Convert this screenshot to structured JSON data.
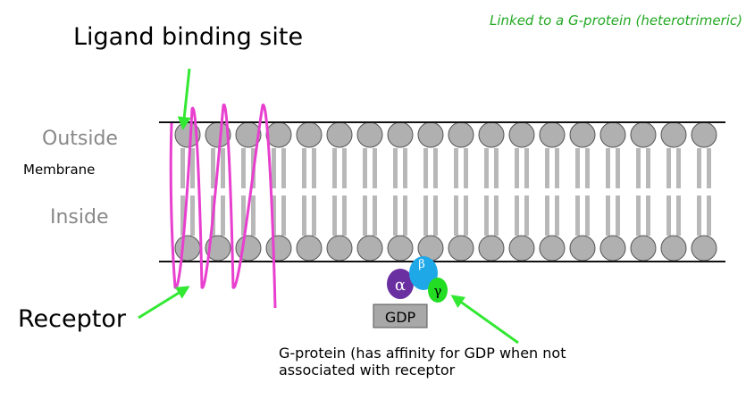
{
  "labels": {
    "note": "Linked to a G-protein (heterotrimeric)",
    "ligand_binding_site": "Ligand binding site",
    "outside": "Outside",
    "membrane": "Membrane",
    "inside": "Inside",
    "receptor": "Receptor",
    "gprotein_line1": "G-protein (has affinity for GDP when not",
    "gprotein_line2": "associated with receptor"
  },
  "gprotein": {
    "alpha": "α",
    "beta": "β",
    "gamma": "γ",
    "gdp": "GDP"
  },
  "colors": {
    "receptor": "#e83fcf",
    "arrow": "#33e833",
    "note": "#22a822",
    "lipid_head": "#b0b0b0",
    "lipid_tail": "#b8b8b8",
    "alpha": "#6a2fa0",
    "beta": "#1fa8e8",
    "gamma": "#22dd22",
    "gdp_box": "#a8a8a8"
  }
}
